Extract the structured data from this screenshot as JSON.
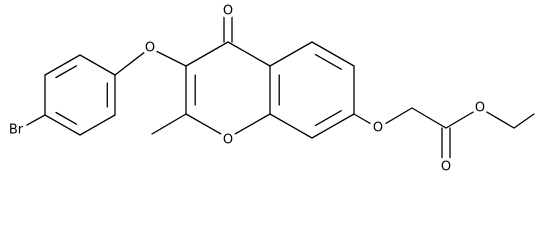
{
  "atom_labels": [
    "Br",
    "O",
    "O",
    "O",
    "O",
    "O",
    "O"
  ]
}
